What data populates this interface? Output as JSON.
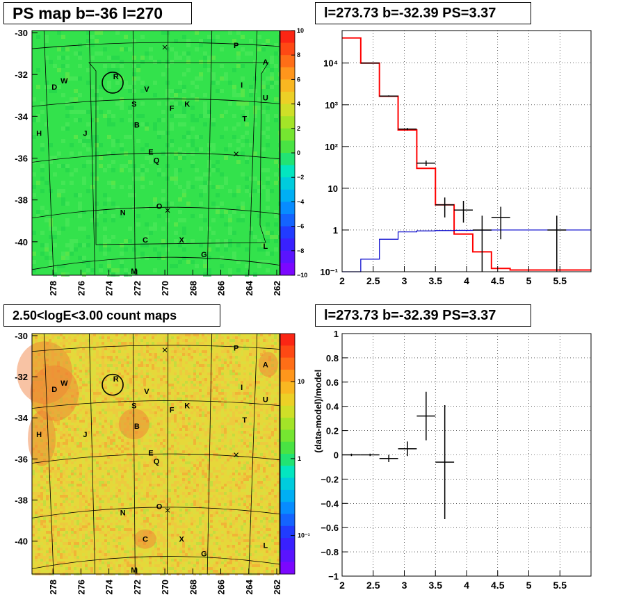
{
  "colors": {
    "map_background": "#33e24c",
    "count_background": "#e6d83a",
    "frame": "#000000",
    "model_red": "#ff0000",
    "model_blue": "#0000cc"
  },
  "panels": {
    "top_left": {
      "title": "PS map b=-36 l=270"
    },
    "top_right": {
      "title": "l=273.73 b=-32.39 PS=3.37"
    },
    "bottom_left": {
      "title": "2.50<logE<3.00 count maps"
    },
    "bottom_right": {
      "title": "l=273.73 b=-32.39 PS=3.37"
    }
  },
  "map_axes": {
    "y_ticks": [
      "-30",
      "-32",
      "-34",
      "-36",
      "-38",
      "-40"
    ],
    "x_ticks": [
      "278",
      "276",
      "274",
      "272",
      "270",
      "268",
      "266",
      "264",
      "262"
    ]
  },
  "ps_colorbar": {
    "ticks": [
      "10",
      "8",
      "6",
      "4",
      "2",
      "0",
      "−2",
      "−4",
      "−6",
      "−8",
      "−10"
    ]
  },
  "count_colorbar": {
    "ticks": [
      "10",
      "1",
      "10⁻¹"
    ]
  },
  "sources": [
    {
      "label": "P",
      "x": 264.9,
      "y": -30.6
    },
    {
      "label": "A",
      "x": 262.8,
      "y": -31.4
    },
    {
      "label": "R",
      "x": 273.5,
      "y": -32.1
    },
    {
      "label": "W",
      "x": 277.2,
      "y": -32.3
    },
    {
      "label": "I",
      "x": 264.5,
      "y": -32.5
    },
    {
      "label": "D",
      "x": 277.9,
      "y": -32.6
    },
    {
      "label": "V",
      "x": 271.3,
      "y": -32.7
    },
    {
      "label": "U",
      "x": 262.8,
      "y": -33.1
    },
    {
      "label": "S",
      "x": 272.2,
      "y": -33.4
    },
    {
      "label": "K",
      "x": 268.4,
      "y": -33.4
    },
    {
      "label": "F",
      "x": 269.5,
      "y": -33.6
    },
    {
      "label": "T",
      "x": 264.3,
      "y": -34.1
    },
    {
      "label": "B",
      "x": 272.0,
      "y": -34.4
    },
    {
      "label": "H",
      "x": 279.0,
      "y": -34.8
    },
    {
      "label": "J",
      "x": 275.7,
      "y": -34.8
    },
    {
      "label": "E",
      "x": 271.0,
      "y": -35.7
    },
    {
      "label": "Q",
      "x": 270.6,
      "y": -36.1
    },
    {
      "label": "O",
      "x": 270.4,
      "y": -38.3
    },
    {
      "label": "N",
      "x": 273.0,
      "y": -38.6
    },
    {
      "label": "C",
      "x": 271.4,
      "y": -39.9
    },
    {
      "label": "X",
      "x": 268.8,
      "y": -39.9
    },
    {
      "label": "L",
      "x": 262.8,
      "y": -40.2
    },
    {
      "label": "G",
      "x": 267.2,
      "y": -40.6
    },
    {
      "label": "M",
      "x": 272.2,
      "y": -41.4
    }
  ],
  "crosses": [
    {
      "x": 270.0,
      "y": -30.7
    },
    {
      "x": 264.9,
      "y": -35.8
    },
    {
      "x": 269.8,
      "y": -38.5
    }
  ],
  "circle_marker": {
    "x": 273.73,
    "y": -32.39
  },
  "chart_data": [
    {
      "type": "line",
      "name": "PS-map",
      "xlim": [
        279.5,
        261.8
      ],
      "ylim": [
        -41.6,
        -29.9
      ],
      "zlim": [
        -10,
        10
      ],
      "mean_value": 1
    },
    {
      "type": "line",
      "name": "spectrum",
      "xlim": [
        2,
        6
      ],
      "ylim": [
        0.1,
        60000
      ],
      "log_y": true,
      "grid": true,
      "x_ticks": [
        2,
        2.5,
        3,
        3.5,
        4,
        4.5,
        5,
        5.5
      ],
      "y_ticks": [
        {
          "v": 0.1,
          "t": "10⁻¹"
        },
        {
          "v": 1,
          "t": "1"
        },
        {
          "v": 10,
          "t": "10"
        },
        {
          "v": 100,
          "t": "10²"
        },
        {
          "v": 1000,
          "t": "10³"
        },
        {
          "v": 10000,
          "t": "10⁴"
        }
      ],
      "series": [
        {
          "color": "#ff0000",
          "edges": [
            2,
            2.3,
            2.6,
            2.9,
            3.2,
            3.5,
            3.8,
            4.1,
            4.4,
            4.7,
            5,
            6
          ],
          "values": [
            40000,
            10000,
            1600,
            250,
            30,
            4,
            0.8,
            0.3,
            0.12,
            0.11,
            0.11
          ]
        },
        {
          "color": "#0000cc",
          "edges": [
            2,
            2.3,
            2.6,
            2.9,
            3.2,
            3.5,
            3.8,
            4.1,
            4.4,
            4.7,
            5,
            6
          ],
          "values": [
            0.05,
            0.2,
            0.6,
            0.9,
            0.95,
            0.97,
            0.98,
            0.99,
            1.0,
            1.0,
            1.0
          ]
        }
      ],
      "points": [
        {
          "x": 2.45,
          "xerr": 0.15,
          "y": 10000,
          "ylo": 9800,
          "yhi": 10200
        },
        {
          "x": 2.75,
          "xerr": 0.15,
          "y": 1620,
          "ylo": 1560,
          "yhi": 1680
        },
        {
          "x": 3.05,
          "xerr": 0.15,
          "y": 262,
          "ylo": 246,
          "yhi": 278
        },
        {
          "x": 3.35,
          "xerr": 0.15,
          "y": 40,
          "ylo": 34,
          "yhi": 46
        },
        {
          "x": 3.65,
          "xerr": 0.15,
          "y": 4,
          "ylo": 2,
          "yhi": 6
        },
        {
          "x": 3.95,
          "xerr": 0.15,
          "y": 3,
          "ylo": 1.5,
          "yhi": 5
        },
        {
          "x": 4.25,
          "xerr": 0.15,
          "y": 1,
          "ylo": 0.1,
          "yhi": 2.2
        },
        {
          "x": 4.55,
          "xerr": 0.15,
          "y": 2,
          "ylo": 0.6,
          "yhi": 3.6
        },
        {
          "x": 5.45,
          "xerr": 0.15,
          "y": 1,
          "ylo": 0.1,
          "yhi": 2.2
        }
      ]
    },
    {
      "type": "heatmap",
      "name": "count-map",
      "xlim": [
        279.5,
        261.8
      ],
      "ylim": [
        -41.6,
        -29.9
      ],
      "zlim": [
        0.05,
        40
      ],
      "mean_value": 4.5
    },
    {
      "type": "scatter",
      "name": "residual",
      "xlim": [
        2,
        6
      ],
      "ylim": [
        -1,
        1
      ],
      "grid": true,
      "ylabel": "(data-model)/model",
      "x_ticks": [
        2,
        2.5,
        3,
        3.5,
        4,
        4.5,
        5,
        5.5
      ],
      "y_ticks": [
        -1,
        -0.8,
        -0.6,
        -0.4,
        -0.2,
        0,
        0.2,
        0.4,
        0.6,
        0.8,
        1
      ],
      "points": [
        {
          "x": 2.15,
          "xerr": 0.15,
          "y": 0.0,
          "yerr": 0.01
        },
        {
          "x": 2.45,
          "xerr": 0.15,
          "y": 0.0,
          "yerr": 0.01
        },
        {
          "x": 2.75,
          "xerr": 0.15,
          "y": -0.03,
          "yerr": 0.03
        },
        {
          "x": 3.05,
          "xerr": 0.15,
          "y": 0.05,
          "yerr": 0.06
        },
        {
          "x": 3.35,
          "xerr": 0.15,
          "y": 0.32,
          "yerr": 0.2
        },
        {
          "x": 3.65,
          "xerr": 0.15,
          "y": -0.06,
          "yerr": 0.47
        }
      ]
    }
  ]
}
